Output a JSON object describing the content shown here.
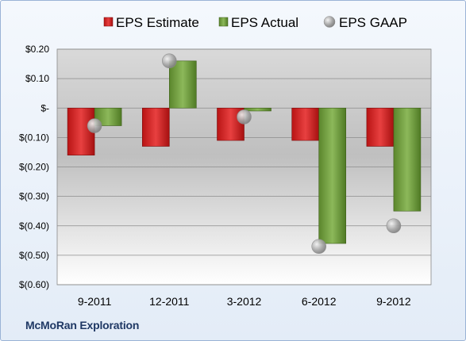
{
  "company": "McMoRan Exploration",
  "chart_data": {
    "type": "bar",
    "categories": [
      "9-2011",
      "12-2011",
      "3-2012",
      "6-2012",
      "9-2012"
    ],
    "series": [
      {
        "name": "EPS Estimate",
        "kind": "bar",
        "color": "#d42a2a",
        "values": [
          -0.16,
          -0.13,
          -0.11,
          -0.11,
          -0.13
        ]
      },
      {
        "name": "EPS Actual",
        "kind": "bar",
        "color": "#6e9a3a",
        "values": [
          -0.06,
          0.16,
          -0.01,
          -0.46,
          -0.35
        ]
      },
      {
        "name": "EPS GAAP",
        "kind": "marker",
        "color": "#a6a6a6",
        "values": [
          -0.06,
          0.16,
          -0.03,
          -0.47,
          -0.4
        ]
      }
    ],
    "yticks": [
      {
        "value": 0.2,
        "label": "$0.20"
      },
      {
        "value": 0.1,
        "label": "$0.10"
      },
      {
        "value": 0.0,
        "label": "$-"
      },
      {
        "value": -0.1,
        "label": "$(0.10)"
      },
      {
        "value": -0.2,
        "label": "$(0.20)"
      },
      {
        "value": -0.3,
        "label": "$(0.30)"
      },
      {
        "value": -0.4,
        "label": "$(0.40)"
      },
      {
        "value": -0.5,
        "label": "$(0.50)"
      },
      {
        "value": -0.6,
        "label": "$(0.60)"
      }
    ],
    "ylim": [
      -0.6,
      0.2
    ],
    "grid": true,
    "legend": "top"
  }
}
